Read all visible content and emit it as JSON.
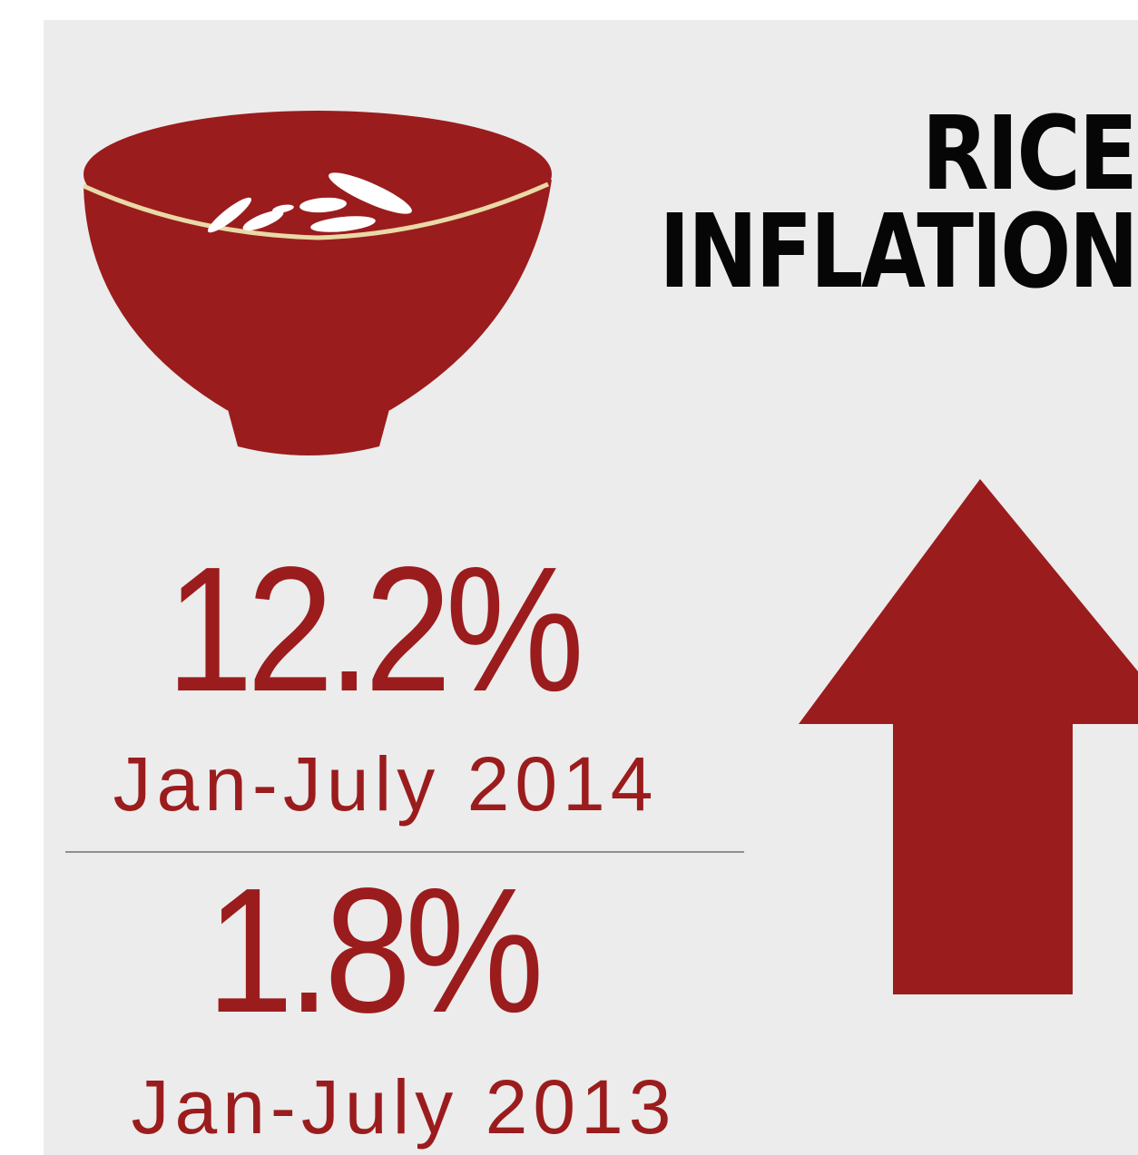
{
  "title": {
    "line1": "RICE",
    "line2": "INFLATION"
  },
  "stats": [
    {
      "value": "12.2%",
      "period": "Jan-July 2014"
    },
    {
      "value": "1.8%",
      "period": "Jan-July 2013"
    }
  ],
  "icons": {
    "bowl": "rice-bowl-icon",
    "arrow": "arrow-up-icon"
  },
  "colors": {
    "accent": "#9b1c1d",
    "title": "#060606",
    "background": "#ececec",
    "bowl_rim": "#e9d9a6",
    "rice_grain": "#ffffff"
  },
  "trend": "up"
}
